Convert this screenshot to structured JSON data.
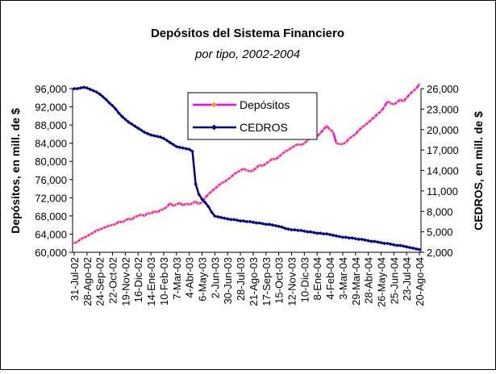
{
  "chart_data": {
    "type": "line",
    "title": "Depósitos del Sistema Financiero",
    "subtitle": "por tipo, 2002-2004",
    "y_label": "Depósitos, en mill. de $",
    "y2_label": "CEDROS, en mill. de $",
    "legend": "top",
    "categories": [
      "31-Jul-02",
      null,
      null,
      null,
      "28-Ago-02",
      null,
      null,
      null,
      "24-Sep-02",
      null,
      null,
      null,
      "22-Oct-02",
      null,
      null,
      null,
      "19-Nov-02",
      null,
      null,
      null,
      "16-Dic-02",
      null,
      null,
      null,
      "14-Ene-03",
      null,
      null,
      null,
      "10-Feb-03",
      null,
      null,
      null,
      "7-Mar-03",
      null,
      null,
      null,
      "4-Abr-03",
      null,
      null,
      null,
      "6-May-03",
      null,
      null,
      null,
      "2-Jun-03",
      null,
      null,
      null,
      "30-Jun-03",
      null,
      null,
      null,
      "28-Jul-03",
      null,
      null,
      null,
      "21-Ago-03",
      null,
      null,
      null,
      "17-Sep-03",
      null,
      null,
      null,
      "15-Oct-03",
      null,
      null,
      null,
      "12-Nov-03",
      null,
      null,
      null,
      "10-Dic-03",
      null,
      null,
      null,
      "8-Ene-04",
      null,
      null,
      null,
      "4-Feb-04",
      null,
      null,
      null,
      "3-Mar-04",
      null,
      null,
      null,
      "29-Mar-04",
      null,
      null,
      null,
      "28-Abr-04",
      null,
      null,
      null,
      "26-May-04",
      null,
      null,
      null,
      "25-Jun-04",
      null,
      null,
      null,
      "23-Jul-04",
      null,
      null,
      null,
      "20-Ago-04"
    ],
    "series": [
      {
        "name": "Depósitos",
        "color": "#ff00ff",
        "marker_color": "#ff9933",
        "axis": "y",
        "values": [
          62000,
          62300,
          62900,
          63200,
          63500,
          64000,
          64300,
          64800,
          65000,
          65300,
          65600,
          65900,
          66000,
          66200,
          66800,
          66600,
          67000,
          67400,
          67200,
          67800,
          68000,
          68300,
          68000,
          68600,
          68500,
          69000,
          68800,
          69300,
          69500,
          70000,
          70800,
          70200,
          70500,
          70900,
          70300,
          70700,
          70500,
          70800,
          71200,
          70600,
          71000,
          72000,
          72800,
          73400,
          74000,
          74600,
          75200,
          75500,
          76000,
          76500,
          77200,
          77600,
          78000,
          78400,
          78000,
          77800,
          78000,
          78600,
          79200,
          79000,
          79500,
          80000,
          80600,
          80400,
          81000,
          81600,
          82200,
          82500,
          83000,
          83400,
          83800,
          83600,
          84000,
          84600,
          85200,
          85000,
          85500,
          86200,
          87000,
          87800,
          87000,
          86500,
          84000,
          83800,
          83800,
          84200,
          85000,
          85500,
          86000,
          86800,
          87500,
          88000,
          88500,
          89200,
          89800,
          90500,
          91000,
          92000,
          93200,
          92800,
          92500,
          93000,
          93600,
          93200,
          94000,
          94800,
          95500,
          96000,
          97000
        ]
      },
      {
        "name": "CEDROS",
        "color": "#000080",
        "marker_color": "#000080",
        "axis": "y2",
        "values": [
          26000,
          26000,
          26100,
          26200,
          26100,
          25900,
          25700,
          25500,
          25200,
          24800,
          24400,
          23900,
          23500,
          23000,
          22400,
          21900,
          21500,
          21100,
          20800,
          20500,
          20200,
          19900,
          19600,
          19400,
          19200,
          19100,
          19000,
          18900,
          18700,
          18400,
          18100,
          17800,
          17500,
          17400,
          17300,
          17200,
          17100,
          16800,
          12000,
          10500,
          9800,
          9300,
          8700,
          7900,
          7300,
          7200,
          7100,
          7000,
          6900,
          6800,
          6800,
          6700,
          6600,
          6600,
          6500,
          6500,
          6400,
          6300,
          6300,
          6200,
          6100,
          6100,
          6000,
          5900,
          5800,
          5700,
          5500,
          5400,
          5300,
          5300,
          5200,
          5200,
          5100,
          5000,
          5000,
          4900,
          4800,
          4800,
          4700,
          4700,
          4600,
          4500,
          4400,
          4300,
          4200,
          4200,
          4100,
          4100,
          4000,
          3900,
          3900,
          3800,
          3700,
          3600,
          3600,
          3500,
          3400,
          3300,
          3300,
          3200,
          3100,
          3000,
          3000,
          2900,
          2800,
          2700,
          2600,
          2500,
          2400
        ]
      }
    ],
    "ylim": [
      60000,
      96000
    ],
    "yticks": [
      {
        "value": 60000,
        "label": "60,000"
      },
      {
        "value": 64000,
        "label": "64,000"
      },
      {
        "value": 68000,
        "label": "68,000"
      },
      {
        "value": 72000,
        "label": "72,000"
      },
      {
        "value": 76000,
        "label": "76,000"
      },
      {
        "value": 80000,
        "label": "80,000"
      },
      {
        "value": 84000,
        "label": "84,000"
      },
      {
        "value": 88000,
        "label": "88,000"
      },
      {
        "value": 92000,
        "label": "92,000"
      },
      {
        "value": 96000,
        "label": "96,000"
      }
    ],
    "y2lim": [
      2000,
      26000
    ],
    "y2ticks": [
      {
        "value": 2000,
        "label": "2,000"
      },
      {
        "value": 5000,
        "label": "5,000"
      },
      {
        "value": 8000,
        "label": "8,000"
      },
      {
        "value": 11000,
        "label": "11,000"
      },
      {
        "value": 14000,
        "label": "14,000"
      },
      {
        "value": 17000,
        "label": "17,000"
      },
      {
        "value": 20000,
        "label": "20,000"
      },
      {
        "value": 23000,
        "label": "23,000"
      },
      {
        "value": 26000,
        "label": "26,000"
      }
    ],
    "grid": false
  }
}
